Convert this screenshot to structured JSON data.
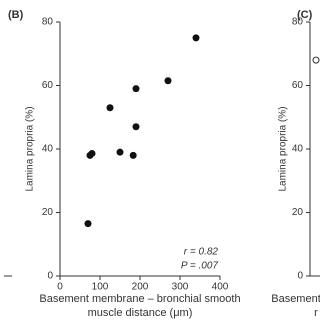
{
  "chart_data": [
    {
      "type": "scatter",
      "panel_label": "(B)",
      "ylabel": "Lamina propria (%)",
      "xlabel": [
        "Basement membrane – bronchial smooth",
        "muscle distance (μm)"
      ],
      "x": [
        70,
        75,
        80,
        125,
        150,
        183,
        190,
        190,
        270,
        340
      ],
      "values": [
        16.5,
        38,
        38.6,
        53,
        39,
        38,
        47,
        59,
        61.5,
        75
      ],
      "color": "#111111",
      "xlim": [
        0,
        400
      ],
      "xticks": [
        0,
        100,
        200,
        300,
        400
      ],
      "ylim": [
        0,
        80
      ],
      "yticks": [
        0,
        20,
        40,
        60,
        80
      ],
      "annotations": [
        "r = 0.82",
        "P = .007"
      ]
    },
    {
      "type": "scatter",
      "panel_label": "(C)",
      "ylabel": "Lamina propria (%)",
      "xlabel": [
        "Basement",
        "r"
      ],
      "values": [
        68
      ],
      "ylim": [
        0,
        80
      ],
      "yticks": [
        0,
        20,
        40,
        60,
        80
      ]
    }
  ]
}
